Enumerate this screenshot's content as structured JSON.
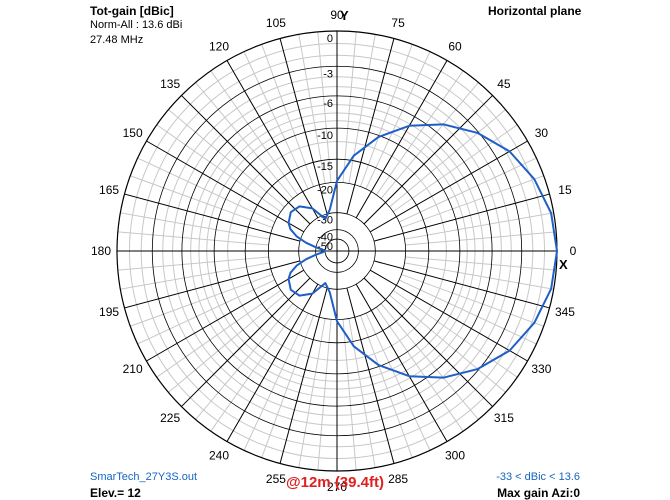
{
  "header": {
    "title": "Tot-gain [dBic]",
    "norm": "Norm-All : 13.6 dBi",
    "frequency": "27.48 MHz",
    "plane": "Horizontal plane"
  },
  "footer": {
    "file": "SmarTech_27Y3S.out",
    "elevation": "Elev.= 12",
    "height": "@12m (39.4ft)",
    "range": "-33 < dBic < 13.6",
    "max_gain": "Max gain Azi:0"
  },
  "axis_labels": {
    "y": "Y",
    "x": "X"
  },
  "colors": {
    "pattern": "#1f5fc8",
    "grid": "#000000",
    "minor_grid": "#c8c8c8",
    "height_text": "#e02020",
    "footer_text": "#1565c0"
  },
  "chart_data": {
    "type": "polar-line",
    "title": "Tot-gain [dBic]",
    "angle_ticks": [
      0,
      15,
      30,
      45,
      60,
      75,
      90,
      105,
      120,
      135,
      150,
      165,
      180,
      195,
      210,
      225,
      240,
      255,
      270,
      285,
      300,
      315,
      330,
      345
    ],
    "angle_tick_labels": [
      "0",
      "15",
      "30",
      "45",
      "60",
      "75",
      "90",
      "105",
      "120",
      "135",
      "150",
      "165",
      "180",
      "195",
      "210",
      "225",
      "240",
      "255",
      "270",
      "285",
      "300",
      "315",
      "330",
      "345"
    ],
    "radial_ticks": [
      0,
      -3,
      -6,
      -10,
      -15,
      -20,
      -30,
      -40,
      -50
    ],
    "radial_tick_labels": [
      "0",
      "-3",
      "-6",
      "-10",
      "-15",
      "-20",
      "-30",
      "-40",
      "-50"
    ],
    "series": [
      {
        "azimuth_deg": [
          0,
          10,
          20,
          30,
          40,
          50,
          60,
          70,
          80,
          90,
          100,
          110,
          120,
          130,
          140,
          150,
          155,
          160,
          165,
          170,
          175,
          180
        ],
        "gain_db": [
          0,
          -0.2,
          -0.8,
          -1.7,
          -3.1,
          -4.9,
          -7.2,
          -10.2,
          -14.1,
          -19.6,
          -28.5,
          -32,
          -25.7,
          -22.8,
          -22.2,
          -23.5,
          -25,
          -28,
          -33,
          -40,
          -47,
          -50
        ]
      }
    ]
  }
}
